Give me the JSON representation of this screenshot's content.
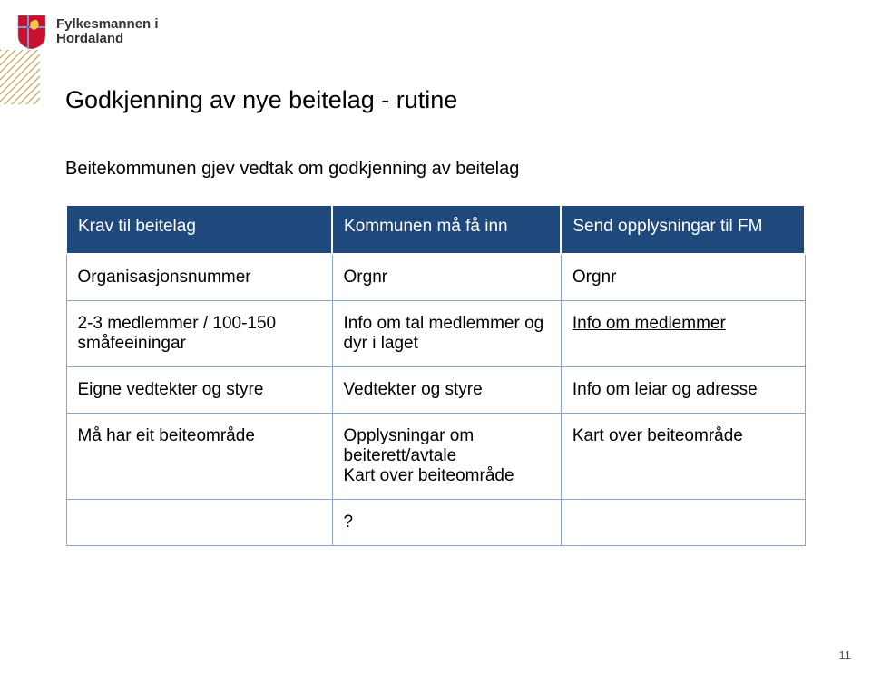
{
  "header": {
    "org_line1": "Fylkesmannen i",
    "org_line2": "Hordaland",
    "crest_colors": {
      "shield": "#c8102e",
      "cross": "#003399",
      "trim": "#ffffff",
      "lion": "#f7c843"
    }
  },
  "slide": {
    "title": "Godkjenning av nye beitelag - rutine",
    "subtitle": "Beitekommunen gjev vedtak om godkjenning av beitelag",
    "page_number": "11"
  },
  "table": {
    "header_bg": "#1f497d",
    "header_text_color": "#ffffff",
    "border_color": "#8ca6c6",
    "columns": [
      {
        "label": "Krav til beitelag"
      },
      {
        "label": "Kommunen må få inn"
      },
      {
        "label": "Send opplysningar til FM"
      }
    ],
    "rows": [
      {
        "c1": "Organisasjonsnummer",
        "c2": "Orgnr",
        "c3": "Orgnr",
        "c3_underline": false
      },
      {
        "c1": "2-3 medlemmer / 100-150 småfeeiningar",
        "c2": "Info om tal medlemmer og dyr i laget",
        "c3": "Info om medlemmer",
        "c3_underline": true
      },
      {
        "c1": "Eigne vedtekter og styre",
        "c2": "Vedtekter og styre",
        "c3": "Info om leiar og adresse",
        "c3_underline": false
      },
      {
        "c1": "Må har eit beiteområde",
        "c2": "Opplysningar om beiterett/avtale\nKart over beiteområde",
        "c3": "Kart over beiteområde",
        "c3_underline": false
      },
      {
        "c1": "",
        "c2": "?",
        "c3": "",
        "c3_underline": false
      }
    ]
  }
}
